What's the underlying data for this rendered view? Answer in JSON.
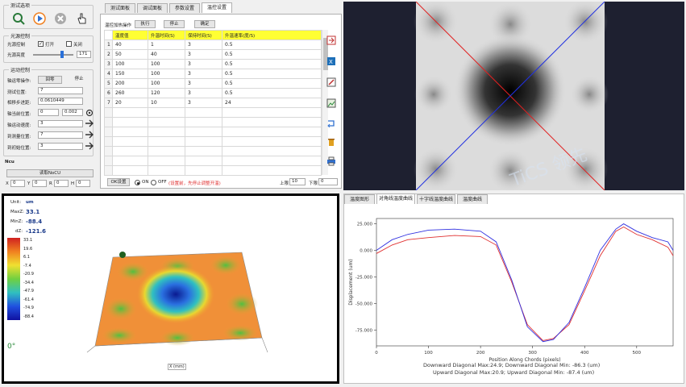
{
  "test_options": {
    "title": "测试选项"
  },
  "light_control": {
    "title": "光源控制",
    "label": "光源控制",
    "on_label": "打开",
    "off_label": "关闭",
    "brightness_label": "光源亮度",
    "brightness_value": "171"
  },
  "motion_control": {
    "title": "运动控制",
    "rows": [
      {
        "label": "轴运零操作:",
        "b1": "回零",
        "b2": "停止"
      },
      {
        "label": "测试位置:",
        "value": "7"
      },
      {
        "label": "相移步进距:",
        "value": "0.0610449"
      },
      {
        "label": "轴当前位置:",
        "value": "0",
        "value2": "0.002"
      },
      {
        "label": "轴运动速度:",
        "value": "3"
      },
      {
        "label": "到测量位置:",
        "value": "7"
      },
      {
        "label": "到初始位置:",
        "value": "3"
      }
    ]
  },
  "ncu": {
    "title": "Ncu",
    "button": "读取NoCU",
    "fields": [
      {
        "label": "X",
        "value": "0"
      },
      {
        "label": "Y",
        "value": "0"
      },
      {
        "label": "R",
        "value": "0"
      },
      {
        "label": "H",
        "value": "0"
      }
    ]
  },
  "tabs": [
    "测试面板",
    "调试面板",
    "参数设置",
    "温控设置"
  ],
  "temp_panel": {
    "ops_label": "温控加热操作",
    "exec_btn": "执行",
    "stop_btn": "停止",
    "confirm_btn": "确定",
    "headers": [
      "温度值",
      "升温时间(S)",
      "保持时间(S)",
      "升温速率(度/S)"
    ],
    "rows": [
      [
        "1",
        "40",
        "1",
        "3",
        "0.5"
      ],
      [
        "2",
        "50",
        "40",
        "3",
        "0.5"
      ],
      [
        "3",
        "100",
        "100",
        "3",
        "0.5"
      ],
      [
        "4",
        "150",
        "100",
        "3",
        "0.5"
      ],
      [
        "5",
        "200",
        "100",
        "3",
        "0.5"
      ],
      [
        "6",
        "260",
        "120",
        "3",
        "0.5"
      ],
      [
        "7",
        "20",
        "10",
        "3",
        "24"
      ]
    ],
    "bottom_btn": "OK设置",
    "on_label": "ON",
    "off_label": "OFF",
    "note": "(设置前，先停止调整开温)",
    "upper_label": "上限",
    "upper_value": "10",
    "lower_label": "下限",
    "lower_value": "0"
  },
  "surface": {
    "unit_label": "Unit:",
    "unit": "um",
    "max_label": "MaxZ:",
    "max": "33.1",
    "min_label": "MinZ:",
    "min": "-88.4",
    "dz_label": "dZ:",
    "dz": "-121.6",
    "scale": [
      "33.1",
      "19.6",
      "6.1",
      "-7.4",
      "-20.9",
      "-34.4",
      "-47.9",
      "-61.4",
      "-74.9",
      "-88.4"
    ],
    "angle": "0°",
    "x_axis": "X (mm)"
  },
  "plot_tabs": [
    "温度图形",
    "对角线温度曲线",
    "十字线温度曲线",
    "温度曲线"
  ],
  "chart_data": {
    "type": "line",
    "xlabel": "Position Along Chords (pixels)",
    "ylabel": "Displacement (um)",
    "xlim": [
      0,
      570
    ],
    "ylim": [
      -90,
      30
    ],
    "x_ticks": [
      "0",
      "100",
      "200",
      "300",
      "400",
      "500"
    ],
    "y_ticks": [
      "25.000",
      "0.000",
      "-25.000",
      "-50.000",
      "-75.000"
    ],
    "x": [
      0,
      30,
      60,
      100,
      150,
      200,
      230,
      260,
      290,
      320,
      340,
      370,
      400,
      430,
      460,
      475,
      500,
      530,
      560,
      570
    ],
    "series": [
      {
        "color": "#e03030",
        "values": [
          -3,
          5,
          10,
          12,
          14,
          13,
          5,
          -30,
          -70,
          -85,
          -83,
          -70,
          -38,
          -5,
          18,
          22,
          15,
          10,
          3,
          -5
        ]
      },
      {
        "color": "#3030e0",
        "values": [
          0,
          10,
          15,
          19,
          20,
          18,
          8,
          -28,
          -72,
          -86,
          -84,
          -68,
          -35,
          0,
          20,
          25,
          18,
          12,
          8,
          0
        ]
      }
    ],
    "annotations": [
      "Downward Diagonal Max:24.9; Downward Diagonal Min: -86.3 (um)",
      "Upward Diagonal Max:20.9; Upward Diagonal Min: -87.4 (um)"
    ]
  }
}
